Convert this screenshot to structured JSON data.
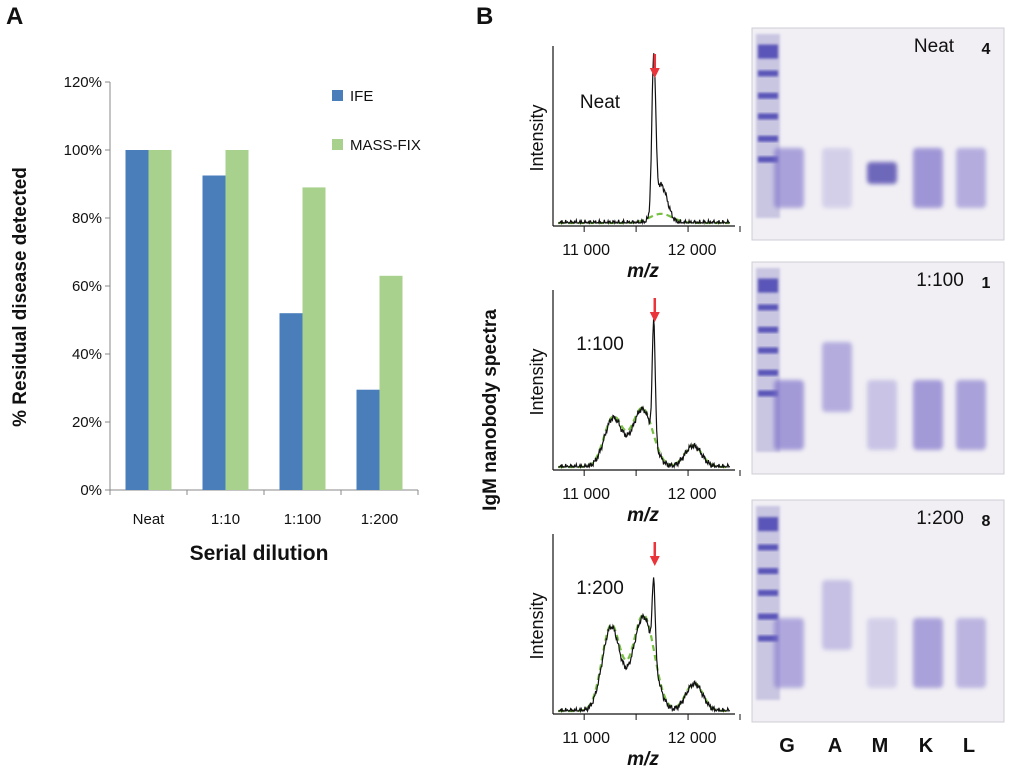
{
  "panels": {
    "A": {
      "label": "A"
    },
    "B": {
      "label": "B"
    }
  },
  "chart_data": [
    {
      "type": "bar",
      "title": "",
      "xlabel": "Serial dilution",
      "ylabel": "% Residual disease detected",
      "categories": [
        "Neat",
        "1:10",
        "1:100",
        "1:200"
      ],
      "series": [
        {
          "name": "IFE",
          "color": "#4a7ebb",
          "values": [
            100,
            92.5,
            52,
            29.5
          ]
        },
        {
          "name": "MASS-FIX",
          "color": "#a9d18e",
          "values": [
            100,
            100,
            89,
            63
          ]
        }
      ],
      "ylim": [
        0,
        120
      ],
      "yticks": [
        "0%",
        "20%",
        "40%",
        "60%",
        "80%",
        "100%",
        "120%"
      ],
      "legend": "top-right"
    },
    {
      "type": "line",
      "title": "IgM nanobody spectra",
      "shared_ylabel": "IgM nanobody spectra",
      "xlabel": "m/z",
      "ylabel": "Intensity",
      "xlim": [
        10700,
        12500
      ],
      "xticks": [
        "11 000",
        "12 000"
      ],
      "colors": {
        "trace": "#111111",
        "fit": "#77c043",
        "arrow": "#e8343a"
      },
      "subplots": [
        {
          "label": "Neat",
          "peak_mz": 11670,
          "peaks": [
            {
              "mz": 11670,
              "h": 1.0,
              "w": 18
            },
            {
              "mz": 11740,
              "h": 0.25,
              "w": 60
            }
          ]
        },
        {
          "label": "1:100",
          "peak_mz": 11670,
          "peaks": [
            {
              "mz": 11280,
              "h": 0.32,
              "w": 85
            },
            {
              "mz": 11560,
              "h": 0.38,
              "w": 95
            },
            {
              "mz": 11670,
              "h": 0.78,
              "w": 14
            },
            {
              "mz": 12050,
              "h": 0.14,
              "w": 80
            }
          ]
        },
        {
          "label": "1:200",
          "peak_mz": 11670,
          "peaks": [
            {
              "mz": 11260,
              "h": 0.55,
              "w": 85
            },
            {
              "mz": 11570,
              "h": 0.62,
              "w": 100
            },
            {
              "mz": 11670,
              "h": 0.5,
              "w": 14
            },
            {
              "mz": 12060,
              "h": 0.18,
              "w": 80
            }
          ]
        }
      ]
    }
  ],
  "gels": {
    "lanes": [
      "G",
      "A",
      "M",
      "K",
      "L"
    ],
    "images": [
      {
        "label": "Neat",
        "id": "4",
        "bands": [
          0.75,
          0.15,
          0.95,
          0.9,
          0.6
        ]
      },
      {
        "label": "1:100",
        "id": "1",
        "bands": [
          0.85,
          0.6,
          0.3,
          0.85,
          0.75
        ]
      },
      {
        "label": "1:200",
        "id": "8",
        "bands": [
          0.65,
          0.35,
          0.15,
          0.75,
          0.5
        ]
      }
    ]
  }
}
